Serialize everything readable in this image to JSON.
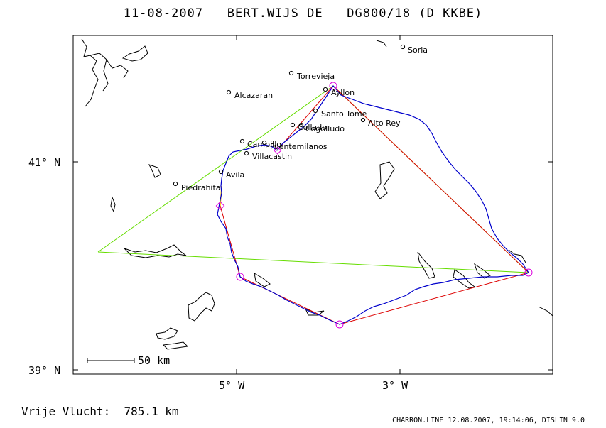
{
  "title": "11-08-2007   BERT.WIJS DE   DG800/18 (D KKBE)",
  "footer_left": "Vrije Vlucht:  785.1 km",
  "footer_right": "CHARRON.LINE 12.08.2007, 19:14:06, DISLIN 9.0",
  "scale_bar": "50 km",
  "axes": {
    "lat_labels": [
      "41° N",
      "39° N"
    ],
    "lon_labels": [
      "5° W",
      "3° W"
    ]
  },
  "places": [
    {
      "name": "Soria"
    },
    {
      "name": "Torrevieja"
    },
    {
      "name": "Ayllon"
    },
    {
      "name": "Alcazaran"
    },
    {
      "name": "Santo Tome"
    },
    {
      "name": "Alto Rey"
    },
    {
      "name": "Collado"
    },
    {
      "name": "Cogolludo"
    },
    {
      "name": "Campillo"
    },
    {
      "name": "Fuentemilanos"
    },
    {
      "name": "Villacastin"
    },
    {
      "name": "Avila"
    },
    {
      "name": "Piedrahita"
    }
  ],
  "colors": {
    "track": "#0000cc",
    "task_line": "#dd0000",
    "optimized_line": "#66dd00",
    "turnpoint": "#dd00dd",
    "start_segment": "#ffcc00"
  }
}
